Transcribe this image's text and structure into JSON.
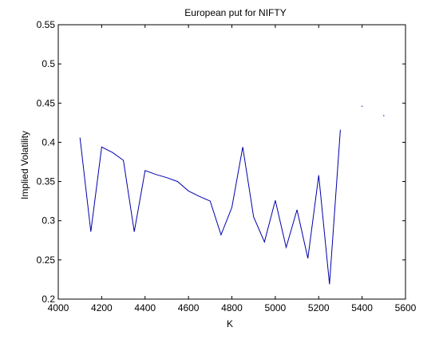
{
  "chart_data": {
    "type": "line",
    "title": "European put for NIFTY",
    "xlabel": "K",
    "ylabel": "Implied Volatility",
    "xlim": [
      4000,
      5600
    ],
    "ylim": [
      0.2,
      0.55
    ],
    "xticks": [
      4000,
      4200,
      4400,
      4600,
      4800,
      5000,
      5200,
      5400,
      5600
    ],
    "yticks": [
      0.2,
      0.25,
      0.3,
      0.35,
      0.4,
      0.45,
      0.5,
      0.55
    ],
    "xtick_labels": [
      "4000",
      "4200",
      "4400",
      "4600",
      "4800",
      "5000",
      "5200",
      "5400",
      "5600"
    ],
    "ytick_labels": [
      "0.2",
      "0.25",
      "0.3",
      "0.35",
      "0.4",
      "0.45",
      "0.5",
      "0.55"
    ],
    "grid": false,
    "box": true,
    "series": [
      {
        "color": "#0000aa",
        "x": [
          4100,
          4150,
          4200,
          4250,
          4300,
          4350,
          4400,
          4450,
          4500,
          4550,
          4600,
          4650,
          4700,
          4750,
          4800,
          4850,
          4900,
          4950,
          5000,
          5050,
          5100,
          5150,
          5200,
          5250,
          5300
        ],
        "y": [
          0.406,
          0.286,
          0.394,
          0.387,
          0.377,
          0.286,
          0.364,
          0.359,
          0.355,
          0.35,
          0.338,
          0.331,
          0.325,
          0.282,
          0.317,
          0.394,
          0.305,
          0.273,
          0.326,
          0.266,
          0.314,
          0.252,
          0.358,
          0.219,
          0.416
        ]
      }
    ],
    "points": {
      "color": "#0000aa",
      "x": [
        5400,
        5500
      ],
      "y": [
        0.446,
        0.434
      ]
    }
  }
}
